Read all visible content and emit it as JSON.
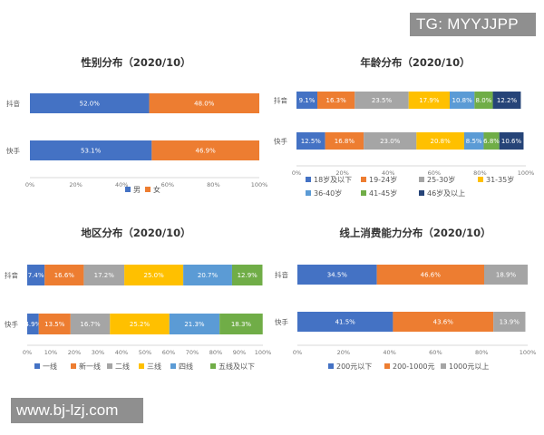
{
  "watermarks": {
    "top_right": "TG: MYYJJPP",
    "bottom_left": "www.bj-lzj.com"
  },
  "chart_data": [
    {
      "type": "bar",
      "stacked": true,
      "orientation": "horizontal",
      "title": "性别分布（2020/10）",
      "categories": [
        "抖音",
        "快手"
      ],
      "series": [
        {
          "name": "男",
          "color": "#4472C4",
          "values": [
            52.0,
            53.1
          ],
          "labels": [
            "52.0%",
            "53.1%"
          ]
        },
        {
          "name": "女",
          "color": "#ED7D31",
          "values": [
            48.0,
            46.9
          ],
          "labels": [
            "48.0%",
            "46.9%"
          ]
        }
      ],
      "xticks": [
        "0%",
        "20%",
        "40%",
        "60%",
        "80%",
        "100%"
      ],
      "xlim": [
        0,
        100
      ],
      "legend": "bottom"
    },
    {
      "type": "bar",
      "stacked": true,
      "orientation": "horizontal",
      "title": "年龄分布（2020/10）",
      "categories": [
        "抖音",
        "快手"
      ],
      "series": [
        {
          "name": "18岁及以下",
          "color": "#4472C4",
          "values": [
            9.1,
            12.5
          ],
          "labels": [
            "9.1%",
            "12.5%"
          ]
        },
        {
          "name": "19-24岁",
          "color": "#ED7D31",
          "values": [
            16.3,
            16.8
          ],
          "labels": [
            "16.3%",
            "16.8%"
          ]
        },
        {
          "name": "25-30岁",
          "color": "#A5A5A5",
          "values": [
            23.5,
            23.0
          ],
          "labels": [
            "23.5%",
            "23.0%"
          ]
        },
        {
          "name": "31-35岁",
          "color": "#FFC000",
          "values": [
            17.9,
            20.8
          ],
          "labels": [
            "17.9%",
            "20.8%"
          ]
        },
        {
          "name": "36-40岁",
          "color": "#5B9BD5",
          "values": [
            10.8,
            8.5
          ],
          "labels": [
            "10.8%",
            "8.5%"
          ]
        },
        {
          "name": "41-45岁",
          "color": "#70AD47",
          "values": [
            8.0,
            6.8
          ],
          "labels": [
            "8.0%",
            "6.8%"
          ]
        },
        {
          "name": "46岁及以上",
          "color": "#264478",
          "values": [
            12.2,
            10.6
          ],
          "labels": [
            "12.2%",
            "10.6%"
          ]
        }
      ],
      "xticks": [
        "0%",
        "20%",
        "40%",
        "60%",
        "80%",
        "100%"
      ],
      "xlim": [
        0,
        100
      ],
      "legend": "bottom"
    },
    {
      "type": "bar",
      "stacked": true,
      "orientation": "horizontal",
      "title": "地区分布（2020/10）",
      "categories": [
        "抖音",
        "快手"
      ],
      "series": [
        {
          "name": "一线",
          "color": "#4472C4",
          "values": [
            7.4,
            4.9
          ],
          "labels": [
            "7.4%",
            "4.9%"
          ]
        },
        {
          "name": "新一线",
          "color": "#ED7D31",
          "values": [
            16.6,
            13.5
          ],
          "labels": [
            "16.6%",
            "13.5%"
          ]
        },
        {
          "name": "二线",
          "color": "#A5A5A5",
          "values": [
            17.2,
            16.7
          ],
          "labels": [
            "17.2%",
            "16.7%"
          ]
        },
        {
          "name": "三线",
          "color": "#FFC000",
          "values": [
            25.0,
            25.2
          ],
          "labels": [
            "25.0%",
            "25.2%"
          ]
        },
        {
          "name": "四线",
          "color": "#5B9BD5",
          "values": [
            20.7,
            21.3
          ],
          "labels": [
            "20.7%",
            "21.3%"
          ]
        },
        {
          "name": "五线及以下",
          "color": "#70AD47",
          "values": [
            12.9,
            18.3
          ],
          "labels": [
            "12.9%",
            "18.3%"
          ]
        }
      ],
      "xticks": [
        "0%",
        "10%",
        "20%",
        "30%",
        "40%",
        "50%",
        "60%",
        "70%",
        "80%",
        "90%",
        "100%"
      ],
      "xlim": [
        0,
        100
      ],
      "legend": "bottom"
    },
    {
      "type": "bar",
      "stacked": true,
      "orientation": "horizontal",
      "title": "线上消费能力分布（2020/10）",
      "categories": [
        "抖音",
        "快手"
      ],
      "series": [
        {
          "name": "200元以下",
          "color": "#4472C4",
          "values": [
            34.5,
            41.5
          ],
          "labels": [
            "34.5%",
            "41.5%"
          ]
        },
        {
          "name": "200-1000元",
          "color": "#ED7D31",
          "values": [
            46.6,
            43.6
          ],
          "labels": [
            "46.6%",
            "43.6%"
          ]
        },
        {
          "name": "1000元以上",
          "color": "#A5A5A5",
          "values": [
            18.9,
            13.9
          ],
          "labels": [
            "18.9%",
            "13.9%"
          ]
        }
      ],
      "xticks": [
        "0%",
        "20%",
        "40%",
        "60%",
        "80%",
        "100%"
      ],
      "xlim": [
        0,
        100
      ],
      "legend": "bottom"
    }
  ]
}
